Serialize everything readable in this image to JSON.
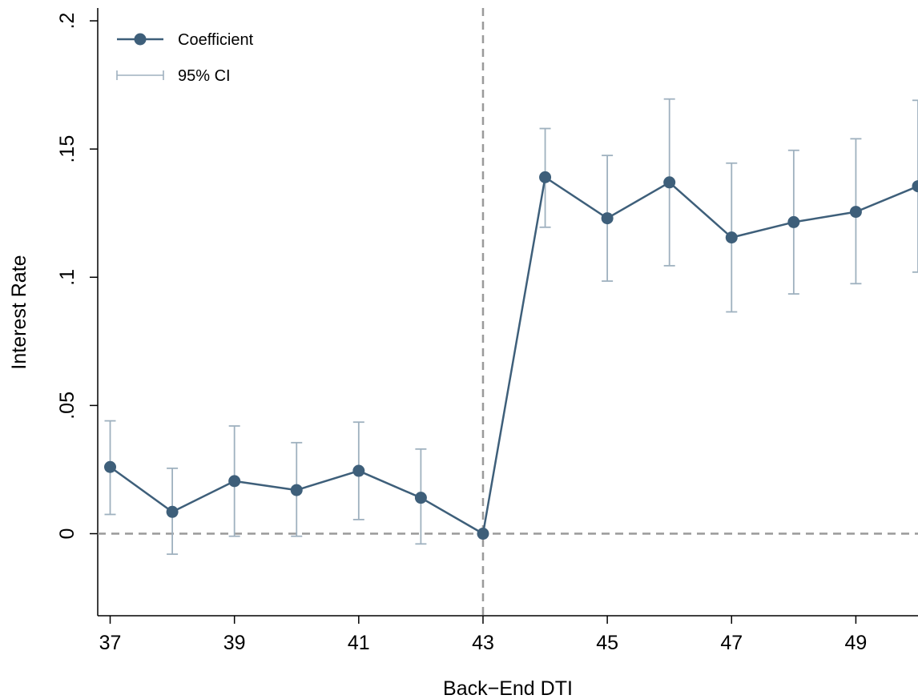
{
  "chart_data": {
    "type": "scatter",
    "xlabel": "Back−End DTI",
    "ylabel": "Interest Rate",
    "xlim": [
      36.8,
      50
    ],
    "ylim": [
      -0.032,
      0.205
    ],
    "x_ticks": [
      37,
      39,
      41,
      43,
      45,
      47,
      49
    ],
    "x_tick_labels": [
      "37",
      "39",
      "41",
      "43",
      "45",
      "47",
      "49"
    ],
    "y_ticks": [
      0,
      0.05,
      0.1,
      0.15,
      0.2
    ],
    "y_tick_labels": [
      "0",
      ".05",
      ".1",
      ".15",
      ".2"
    ],
    "reference_lines": {
      "x": 43,
      "y": 0,
      "style": "dashed"
    },
    "grid": false,
    "legend_position": "top-left",
    "colors": {
      "coefficient": "#3e5f7a",
      "ci": "#9fb1bf",
      "reference": "#9a9a9a"
    },
    "legend": {
      "coefficient_label": "Coefficient",
      "ci_label": "95% CI"
    },
    "series": [
      {
        "name": "Coefficient",
        "x": [
          37,
          38,
          39,
          40,
          41,
          42,
          43,
          44,
          45,
          46,
          47,
          48,
          49,
          50
        ],
        "y": [
          0.026,
          0.0085,
          0.0205,
          0.017,
          0.0245,
          0.014,
          0.0,
          0.139,
          0.123,
          0.137,
          0.1155,
          0.1215,
          0.1255,
          0.1355
        ]
      },
      {
        "name": "95% CI",
        "x": [
          37,
          38,
          39,
          40,
          41,
          42,
          43,
          44,
          45,
          46,
          47,
          48,
          49,
          50
        ],
        "lower": [
          0.0075,
          -0.008,
          -0.001,
          -0.001,
          0.0055,
          -0.004,
          null,
          0.1195,
          0.0985,
          0.1045,
          0.0865,
          0.0935,
          0.0975,
          0.102
        ],
        "upper": [
          0.044,
          0.0255,
          0.042,
          0.0355,
          0.0435,
          0.033,
          null,
          0.158,
          0.1475,
          0.1695,
          0.1445,
          0.1495,
          0.154,
          0.169
        ]
      }
    ]
  }
}
